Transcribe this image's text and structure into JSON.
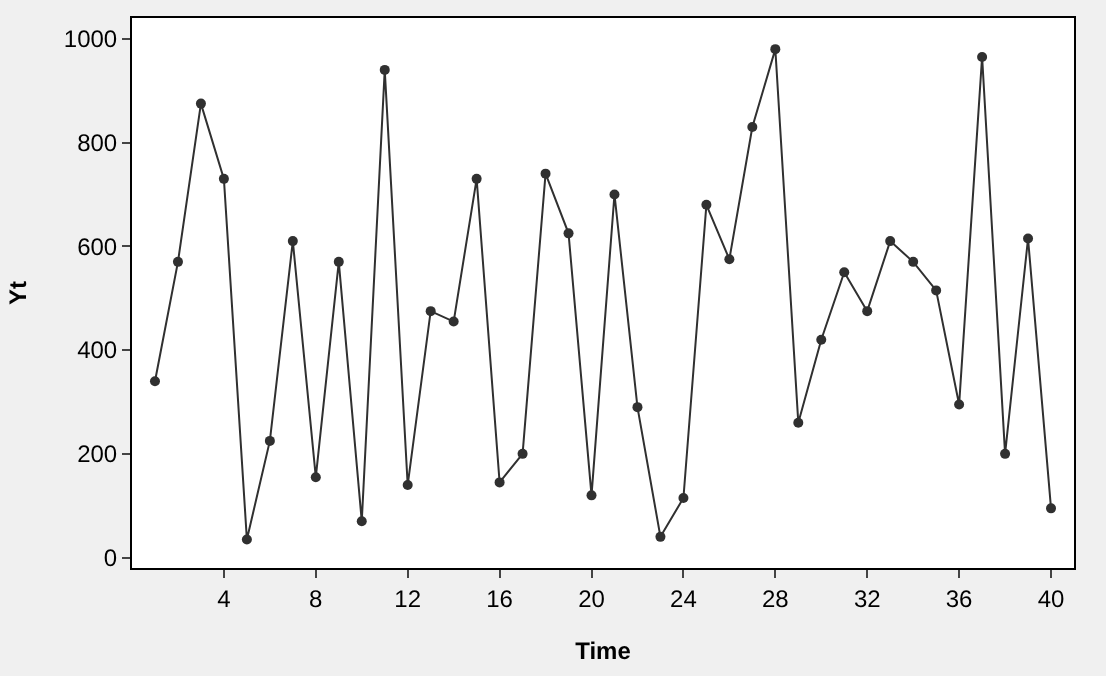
{
  "chart_data": {
    "type": "line",
    "xlabel": "Time",
    "ylabel": "Yt",
    "x": [
      1,
      2,
      3,
      4,
      5,
      6,
      7,
      8,
      9,
      10,
      11,
      12,
      13,
      14,
      15,
      16,
      17,
      18,
      19,
      20,
      21,
      22,
      23,
      24,
      25,
      26,
      27,
      28,
      29,
      30,
      31,
      32,
      33,
      34,
      35,
      36,
      37,
      38,
      39,
      40
    ],
    "series": [
      {
        "color": "#303030",
        "values": [
          340,
          570,
          875,
          730,
          35,
          225,
          610,
          155,
          570,
          70,
          940,
          140,
          475,
          455,
          730,
          145,
          200,
          740,
          625,
          120,
          700,
          290,
          40,
          115,
          680,
          575,
          830,
          980,
          260,
          420,
          550,
          475,
          610,
          570,
          515,
          295,
          965,
          200,
          615,
          95
        ]
      }
    ],
    "xlim": [
      0,
      41
    ],
    "ylim": [
      -20,
      1040
    ],
    "xticks": [
      4,
      8,
      12,
      16,
      20,
      24,
      28,
      32,
      36,
      40
    ],
    "yticks": [
      0,
      200,
      400,
      600,
      800,
      1000
    ],
    "marker": "circle",
    "line_style": "solid"
  }
}
